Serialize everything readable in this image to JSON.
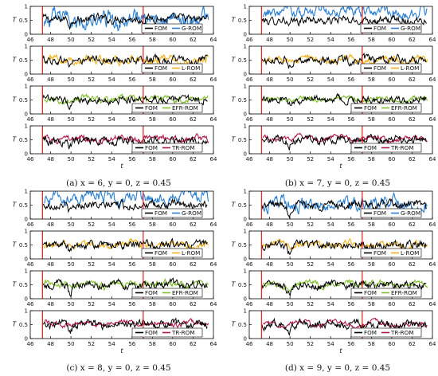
{
  "figure": {
    "captions": [
      "(a) x = 6, y = 0, z = 0.45",
      "(b) x = 7, y = 0, z = 0.45",
      "(c) x = 8, y = 0, z = 0.45",
      "(d) x = 9, y = 0, z = 0.45"
    ]
  },
  "chart_data": {
    "type": "line",
    "xlabel": "t",
    "ylabel": "T",
    "xlim": [
      46,
      64
    ],
    "ylim": [
      0,
      1
    ],
    "xticks": [
      46,
      48,
      50,
      52,
      54,
      56,
      58,
      60,
      62,
      64
    ],
    "yticks": [
      0,
      0.5,
      1
    ],
    "vertical_markers": [
      47.2,
      57.1
    ],
    "vertical_marker_color": "#e0201a",
    "grid": false,
    "legend_location": "bottom-right",
    "colors": {
      "FOM": "#000000",
      "G-ROM": "#2a7fd0",
      "L-ROM": "#f2b21b",
      "EFR-ROM": "#7fbf2a",
      "TR-ROM": "#b3164a"
    },
    "panels": [
      {
        "caption": "(a) x = 6, y = 0, z = 0.45",
        "rows": [
          {
            "reference": "FOM",
            "model": "G-ROM",
            "fom_mean": 0.55,
            "rom_mean": 0.5,
            "rom_amp": 0.28
          },
          {
            "reference": "FOM",
            "model": "L-ROM",
            "fom_mean": 0.5,
            "rom_mean": 0.5,
            "rom_amp": 0.12
          },
          {
            "reference": "FOM",
            "model": "EFR-ROM",
            "fom_mean": 0.5,
            "rom_mean": 0.52,
            "rom_amp": 0.1
          },
          {
            "reference": "FOM",
            "model": "TR-ROM",
            "fom_mean": 0.45,
            "rom_mean": 0.52,
            "rom_amp": 0.1
          }
        ]
      },
      {
        "caption": "(b) x = 7, y = 0, z = 0.45",
        "rows": [
          {
            "reference": "FOM",
            "model": "G-ROM",
            "fom_mean": 0.5,
            "rom_mean": 0.78,
            "rom_amp": 0.2
          },
          {
            "reference": "FOM",
            "model": "L-ROM",
            "fom_mean": 0.5,
            "rom_mean": 0.5,
            "rom_amp": 0.1
          },
          {
            "reference": "FOM",
            "model": "EFR-ROM",
            "fom_mean": 0.5,
            "rom_mean": 0.52,
            "rom_amp": 0.08
          },
          {
            "reference": "FOM",
            "model": "TR-ROM",
            "fom_mean": 0.5,
            "rom_mean": 0.55,
            "rom_amp": 0.08
          }
        ]
      },
      {
        "caption": "(c) x = 8, y = 0, z = 0.45",
        "rows": [
          {
            "reference": "FOM",
            "model": "G-ROM",
            "fom_mean": 0.5,
            "rom_mean": 0.75,
            "rom_amp": 0.22
          },
          {
            "reference": "FOM",
            "model": "L-ROM",
            "fom_mean": 0.5,
            "rom_mean": 0.5,
            "rom_amp": 0.1
          },
          {
            "reference": "FOM",
            "model": "EFR-ROM",
            "fom_mean": 0.5,
            "rom_mean": 0.52,
            "rom_amp": 0.1
          },
          {
            "reference": "FOM",
            "model": "TR-ROM",
            "fom_mean": 0.5,
            "rom_mean": 0.55,
            "rom_amp": 0.08
          }
        ]
      },
      {
        "caption": "(d) x = 9, y = 0, z = 0.45",
        "rows": [
          {
            "reference": "FOM",
            "model": "G-ROM",
            "fom_mean": 0.5,
            "rom_mean": 0.55,
            "rom_amp": 0.22
          },
          {
            "reference": "FOM",
            "model": "L-ROM",
            "fom_mean": 0.5,
            "rom_mean": 0.5,
            "rom_amp": 0.1
          },
          {
            "reference": "FOM",
            "model": "EFR-ROM",
            "fom_mean": 0.5,
            "rom_mean": 0.52,
            "rom_amp": 0.1
          },
          {
            "reference": "FOM",
            "model": "TR-ROM",
            "fom_mean": 0.5,
            "rom_mean": 0.52,
            "rom_amp": 0.08
          }
        ]
      }
    ]
  }
}
